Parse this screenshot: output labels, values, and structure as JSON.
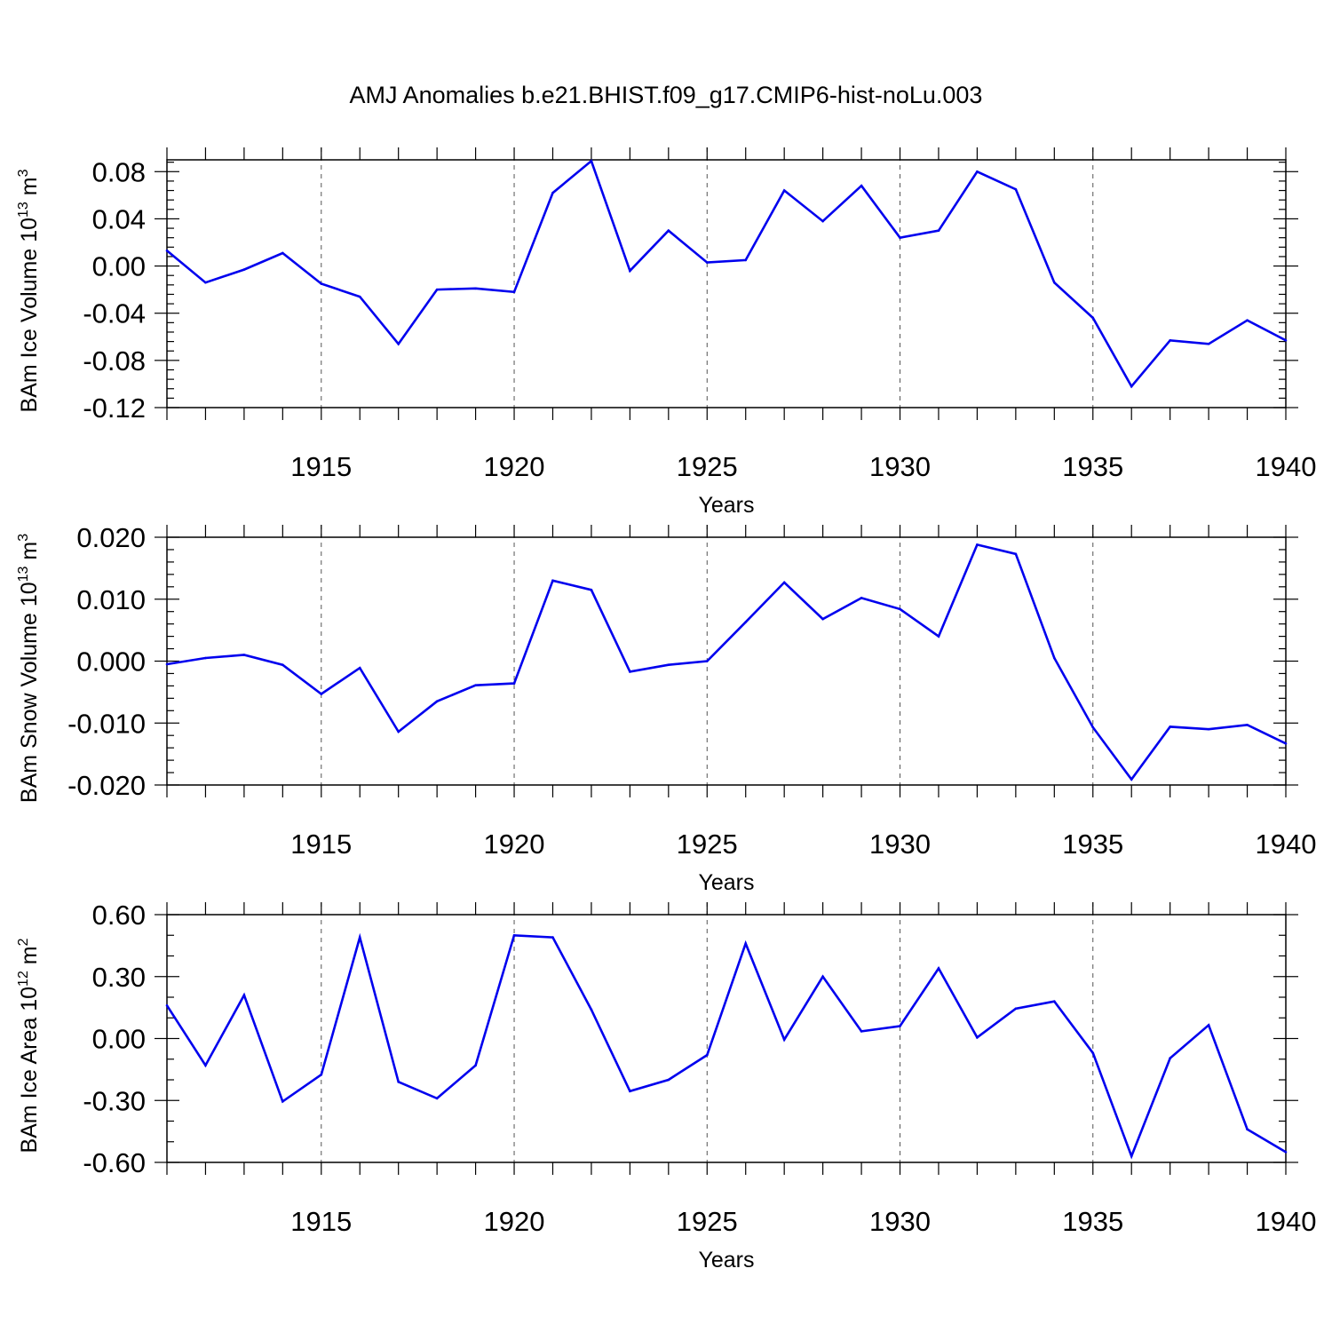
{
  "figure": {
    "title": "AMJ Anomalies b.e21.BHIST.f09_g17.CMIP6-hist-noLu.003",
    "line_color": "#0000ee"
  },
  "chart_data": [
    {
      "type": "line",
      "ylabel_main": "BAm Ice Volume 10",
      "ylabel_exp": "13",
      "ylabel_unit": " m",
      "ylabel_unit_exp": "3",
      "xlabel": "Years",
      "xlim": [
        1911,
        1940
      ],
      "ylim": [
        -0.12,
        0.09
      ],
      "yticks": [
        0.08,
        0.04,
        0.0,
        -0.04,
        -0.08,
        -0.12
      ],
      "ytick_labels": [
        "0.08",
        "0.04",
        "0.00",
        "-0.04",
        "-0.08",
        "-0.12"
      ],
      "yminor_step": 0.008,
      "xticks": [
        1915,
        1920,
        1925,
        1930,
        1935,
        1940
      ],
      "xtick_labels": [
        "1915",
        "1920",
        "1925",
        "1930",
        "1935",
        "1940"
      ],
      "grid_x": [
        1915,
        1920,
        1925,
        1930,
        1935
      ],
      "x": [
        1911,
        1912,
        1913,
        1914,
        1915,
        1916,
        1917,
        1918,
        1919,
        1920,
        1921,
        1922,
        1923,
        1924,
        1925,
        1926,
        1927,
        1928,
        1929,
        1930,
        1931,
        1932,
        1933,
        1934,
        1935,
        1936,
        1937,
        1938,
        1939,
        1940
      ],
      "series": [
        {
          "values": [
            0.013,
            -0.014,
            -0.003,
            0.011,
            -0.015,
            -0.026,
            -0.066,
            -0.02,
            -0.019,
            -0.022,
            0.062,
            0.089,
            -0.004,
            0.03,
            0.003,
            0.005,
            0.064,
            0.038,
            0.068,
            0.024,
            0.03,
            0.08,
            0.065,
            -0.014,
            -0.044,
            -0.102,
            -0.063,
            -0.066,
            -0.046,
            -0.063
          ]
        }
      ]
    },
    {
      "type": "line",
      "ylabel_main": "BAm Snow Volume 10",
      "ylabel_exp": "13",
      "ylabel_unit": " m",
      "ylabel_unit_exp": "3",
      "xlabel": "Years",
      "xlim": [
        1911,
        1940
      ],
      "ylim": [
        -0.02,
        0.02
      ],
      "yticks": [
        0.02,
        0.01,
        0.0,
        -0.01,
        -0.02
      ],
      "ytick_labels": [
        "0.020",
        "0.010",
        "0.000",
        "-0.010",
        "-0.020"
      ],
      "yminor_step": 0.002,
      "xticks": [
        1915,
        1920,
        1925,
        1930,
        1935,
        1940
      ],
      "xtick_labels": [
        "1915",
        "1920",
        "1925",
        "1930",
        "1935",
        "1940"
      ],
      "grid_x": [
        1915,
        1920,
        1925,
        1930,
        1935
      ],
      "x": [
        1911,
        1912,
        1913,
        1914,
        1915,
        1916,
        1917,
        1918,
        1919,
        1920,
        1921,
        1922,
        1923,
        1924,
        1925,
        1926,
        1927,
        1928,
        1929,
        1930,
        1931,
        1932,
        1933,
        1934,
        1935,
        1936,
        1937,
        1938,
        1939,
        1940
      ],
      "series": [
        {
          "values": [
            -0.0005,
            0.0005,
            0.001,
            -0.0006,
            -0.0053,
            -0.0011,
            -0.0114,
            -0.0065,
            -0.0039,
            -0.0036,
            0.013,
            0.0115,
            -0.0017,
            -0.0006,
            0.0,
            0.0063,
            0.0127,
            0.0068,
            0.0102,
            0.0084,
            0.004,
            0.0188,
            0.0173,
            0.0005,
            -0.0107,
            -0.0191,
            -0.0106,
            -0.011,
            -0.0103,
            -0.0133
          ]
        }
      ]
    },
    {
      "type": "line",
      "ylabel_main": "BAm Ice Area 10",
      "ylabel_exp": "12",
      "ylabel_unit": " m",
      "ylabel_unit_exp": "2",
      "xlabel": "Years",
      "xlim": [
        1911,
        1940
      ],
      "ylim": [
        -0.6,
        0.6
      ],
      "yticks": [
        0.6,
        0.3,
        0.0,
        -0.3,
        -0.6
      ],
      "ytick_labels": [
        "0.60",
        "0.30",
        "0.00",
        "-0.30",
        "-0.60"
      ],
      "yminor_step": 0.1,
      "xticks": [
        1915,
        1920,
        1925,
        1930,
        1935,
        1940
      ],
      "xtick_labels": [
        "1915",
        "1920",
        "1925",
        "1930",
        "1935",
        "1940"
      ],
      "grid_x": [
        1915,
        1920,
        1925,
        1930,
        1935
      ],
      "x": [
        1911,
        1912,
        1913,
        1914,
        1915,
        1916,
        1917,
        1918,
        1919,
        1920,
        1921,
        1922,
        1923,
        1924,
        1925,
        1926,
        1927,
        1928,
        1929,
        1930,
        1931,
        1932,
        1933,
        1934,
        1935,
        1936,
        1937,
        1938,
        1939,
        1940
      ],
      "series": [
        {
          "values": [
            0.16,
            -0.13,
            0.21,
            -0.305,
            -0.175,
            0.49,
            -0.21,
            -0.29,
            -0.13,
            0.5,
            0.49,
            0.14,
            -0.255,
            -0.2,
            -0.08,
            0.46,
            -0.005,
            0.3,
            0.035,
            0.06,
            0.34,
            0.005,
            0.145,
            0.18,
            -0.07,
            -0.57,
            -0.095,
            0.065,
            -0.44,
            -0.55
          ]
        }
      ]
    }
  ]
}
